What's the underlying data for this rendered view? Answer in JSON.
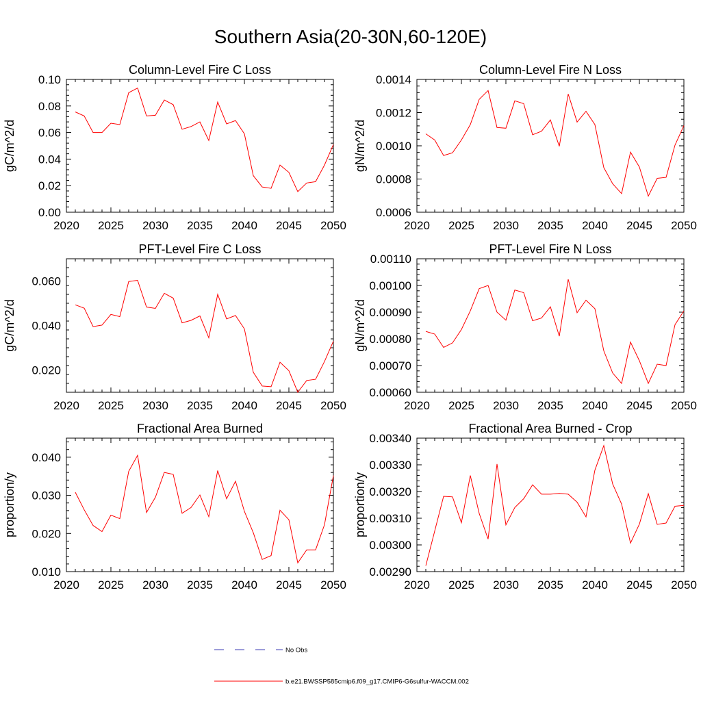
{
  "main_title": "Southern Asia(20-30N,60-120E)",
  "legend": {
    "items": [
      {
        "label": "No Obs",
        "color": "#3b3bb5",
        "style": "dashed"
      },
      {
        "label": "b.e21.BWSSP585cmip6.f09_g17.CMIP6-G6sulfur-WACCM.002",
        "color": "#ff0000",
        "style": "solid"
      }
    ]
  },
  "chart_data": [
    {
      "type": "line",
      "title": "Column-Level Fire C Loss",
      "ylabel": "gC/m^2/d",
      "xlim": [
        2020,
        2050
      ],
      "ylim": [
        0.0,
        0.1
      ],
      "xticks": [
        "2020",
        "2025",
        "2030",
        "2035",
        "2040",
        "2045",
        "2050"
      ],
      "yticks": [
        "0.00",
        "0.02",
        "0.04",
        "0.06",
        "0.08",
        "0.10"
      ],
      "ytick_values": [
        0.0,
        0.02,
        0.04,
        0.06,
        0.08,
        0.1
      ],
      "x": [
        2021,
        2022,
        2023,
        2024,
        2025,
        2026,
        2027,
        2028,
        2029,
        2030,
        2031,
        2032,
        2033,
        2034,
        2035,
        2036,
        2037,
        2038,
        2039,
        2040,
        2041,
        2042,
        2043,
        2044,
        2045,
        2046,
        2047,
        2048,
        2049,
        2050
      ],
      "series": [
        {
          "color": "#ff0000",
          "values": [
            0.0755,
            0.0725,
            0.06,
            0.06,
            0.067,
            0.066,
            0.09,
            0.0935,
            0.0725,
            0.073,
            0.0845,
            0.081,
            0.0625,
            0.0645,
            0.068,
            0.054,
            0.083,
            0.0665,
            0.069,
            0.059,
            0.0275,
            0.019,
            0.018,
            0.0355,
            0.03,
            0.0155,
            0.022,
            0.023,
            0.0355,
            0.051
          ]
        }
      ]
    },
    {
      "type": "line",
      "title": "Column-Level Fire N Loss",
      "ylabel": "gN/m^2/d",
      "xlim": [
        2020,
        2050
      ],
      "ylim": [
        0.0006,
        0.0014
      ],
      "xticks": [
        "2020",
        "2025",
        "2030",
        "2035",
        "2040",
        "2045",
        "2050"
      ],
      "yticks": [
        "0.0006",
        "0.0008",
        "0.0010",
        "0.0012",
        "0.0014"
      ],
      "ytick_values": [
        0.0006,
        0.0008,
        0.001,
        0.0012,
        0.0014
      ],
      "x": [
        2021,
        2022,
        2023,
        2024,
        2025,
        2026,
        2027,
        2028,
        2029,
        2030,
        2031,
        2032,
        2033,
        2034,
        2035,
        2036,
        2037,
        2038,
        2039,
        2040,
        2041,
        2042,
        2043,
        2044,
        2045,
        2046,
        2047,
        2048,
        2049,
        2050
      ],
      "series": [
        {
          "color": "#ff0000",
          "values": [
            0.001072,
            0.001035,
            0.000942,
            0.000958,
            0.001035,
            0.001128,
            0.00128,
            0.001333,
            0.00111,
            0.001106,
            0.001271,
            0.001254,
            0.001067,
            0.001088,
            0.001156,
            0.000997,
            0.001312,
            0.001143,
            0.001208,
            0.001128,
            0.000869,
            0.000771,
            0.000712,
            0.000962,
            0.000872,
            0.000697,
            0.000804,
            0.00081,
            0.001004,
            0.001122
          ]
        }
      ]
    },
    {
      "type": "line",
      "title": "PFT-Level Fire C Loss",
      "ylabel": "gC/m^2/d",
      "xlim": [
        2020,
        2050
      ],
      "ylim": [
        0.01,
        0.07
      ],
      "xticks": [
        "2020",
        "2025",
        "2030",
        "2035",
        "2040",
        "2045",
        "2050"
      ],
      "yticks": [
        "0.020",
        "0.040",
        "0.060"
      ],
      "ytick_values": [
        0.02,
        0.04,
        0.06
      ],
      "x": [
        2021,
        2022,
        2023,
        2024,
        2025,
        2026,
        2027,
        2028,
        2029,
        2030,
        2031,
        2032,
        2033,
        2034,
        2035,
        2036,
        2037,
        2038,
        2039,
        2040,
        2041,
        2042,
        2043,
        2044,
        2045,
        2046,
        2047,
        2048,
        2049,
        2050
      ],
      "series": [
        {
          "color": "#ff0000",
          "values": [
            0.0493,
            0.0478,
            0.0395,
            0.0402,
            0.045,
            0.044,
            0.0598,
            0.0603,
            0.0483,
            0.0477,
            0.0545,
            0.0523,
            0.0412,
            0.0423,
            0.0443,
            0.0345,
            0.054,
            0.043,
            0.0445,
            0.0385,
            0.019,
            0.0128,
            0.0125,
            0.0235,
            0.0197,
            0.01,
            0.0153,
            0.0158,
            0.0238,
            0.033
          ]
        }
      ]
    },
    {
      "type": "line",
      "title": "PFT-Level Fire N Loss",
      "ylabel": "gN/m^2/d",
      "xlim": [
        2020,
        2050
      ],
      "ylim": [
        0.0006,
        0.0011
      ],
      "xticks": [
        "2020",
        "2025",
        "2030",
        "2035",
        "2040",
        "2045",
        "2050"
      ],
      "yticks": [
        "0.00060",
        "0.00070",
        "0.00080",
        "0.00090",
        "0.00100",
        "0.00110"
      ],
      "ytick_values": [
        0.0006,
        0.0007,
        0.0008,
        0.0009,
        0.001,
        0.0011
      ],
      "x": [
        2021,
        2022,
        2023,
        2024,
        2025,
        2026,
        2027,
        2028,
        2029,
        2030,
        2031,
        2032,
        2033,
        2034,
        2035,
        2036,
        2037,
        2038,
        2039,
        2040,
        2041,
        2042,
        2043,
        2044,
        2045,
        2046,
        2047,
        2048,
        2049,
        2050
      ],
      "series": [
        {
          "color": "#ff0000",
          "values": [
            0.000828,
            0.000818,
            0.000768,
            0.000785,
            0.000835,
            0.000905,
            0.000988,
            0.001,
            0.0009,
            0.00087,
            0.000983,
            0.000973,
            0.000868,
            0.000878,
            0.00092,
            0.00081,
            0.001023,
            0.000898,
            0.000945,
            0.000913,
            0.000755,
            0.000672,
            0.000633,
            0.000788,
            0.000718,
            0.000633,
            0.000705,
            0.0007,
            0.000853,
            0.000905
          ]
        }
      ]
    },
    {
      "type": "line",
      "title": "Fractional Area Burned",
      "ylabel": "proportion/y",
      "xlim": [
        2020,
        2050
      ],
      "ylim": [
        0.01,
        0.045
      ],
      "xticks": [
        "2020",
        "2025",
        "2030",
        "2035",
        "2040",
        "2045",
        "2050"
      ],
      "yticks": [
        "0.010",
        "0.020",
        "0.030",
        "0.040"
      ],
      "ytick_values": [
        0.01,
        0.02,
        0.03,
        0.04
      ],
      "x": [
        2021,
        2022,
        2023,
        2024,
        2025,
        2026,
        2027,
        2028,
        2029,
        2030,
        2031,
        2032,
        2033,
        2034,
        2035,
        2036,
        2037,
        2038,
        2039,
        2040,
        2041,
        2042,
        2043,
        2044,
        2045,
        2046,
        2047,
        2048,
        2049,
        2050
      ],
      "series": [
        {
          "color": "#ff0000",
          "values": [
            0.0308,
            0.0262,
            0.0221,
            0.0205,
            0.0248,
            0.0239,
            0.0363,
            0.0405,
            0.0255,
            0.0295,
            0.036,
            0.0355,
            0.0253,
            0.0268,
            0.0301,
            0.0244,
            0.0365,
            0.0291,
            0.0337,
            0.0258,
            0.0202,
            0.0132,
            0.0142,
            0.0261,
            0.0236,
            0.0123,
            0.0157,
            0.0157,
            0.0223,
            0.0352
          ]
        }
      ]
    },
    {
      "type": "line",
      "title": "Fractional Area Burned - Crop",
      "ylabel": "proportion/y",
      "xlim": [
        2020,
        2050
      ],
      "ylim": [
        0.0029,
        0.0034
      ],
      "xticks": [
        "2020",
        "2025",
        "2030",
        "2035",
        "2040",
        "2045",
        "2050"
      ],
      "yticks": [
        "0.00290",
        "0.00300",
        "0.00310",
        "0.00320",
        "0.00330",
        "0.00340"
      ],
      "ytick_values": [
        0.0029,
        0.003,
        0.0031,
        0.0032,
        0.0033,
        0.0034
      ],
      "x": [
        2021,
        2022,
        2023,
        2024,
        2025,
        2026,
        2027,
        2028,
        2029,
        2030,
        2031,
        2032,
        2033,
        2034,
        2035,
        2036,
        2037,
        2038,
        2039,
        2040,
        2041,
        2042,
        2043,
        2044,
        2045,
        2046,
        2047,
        2048,
        2049,
        2050
      ],
      "series": [
        {
          "color": "#ff0000",
          "values": [
            0.002922,
            0.003052,
            0.003182,
            0.00318,
            0.003083,
            0.00326,
            0.003118,
            0.003022,
            0.003303,
            0.003075,
            0.00314,
            0.003173,
            0.003225,
            0.00319,
            0.00319,
            0.003193,
            0.00319,
            0.00316,
            0.003105,
            0.00328,
            0.003372,
            0.003228,
            0.003153,
            0.003007,
            0.003078,
            0.003192,
            0.003077,
            0.003082,
            0.003145,
            0.003148
          ]
        }
      ]
    }
  ]
}
